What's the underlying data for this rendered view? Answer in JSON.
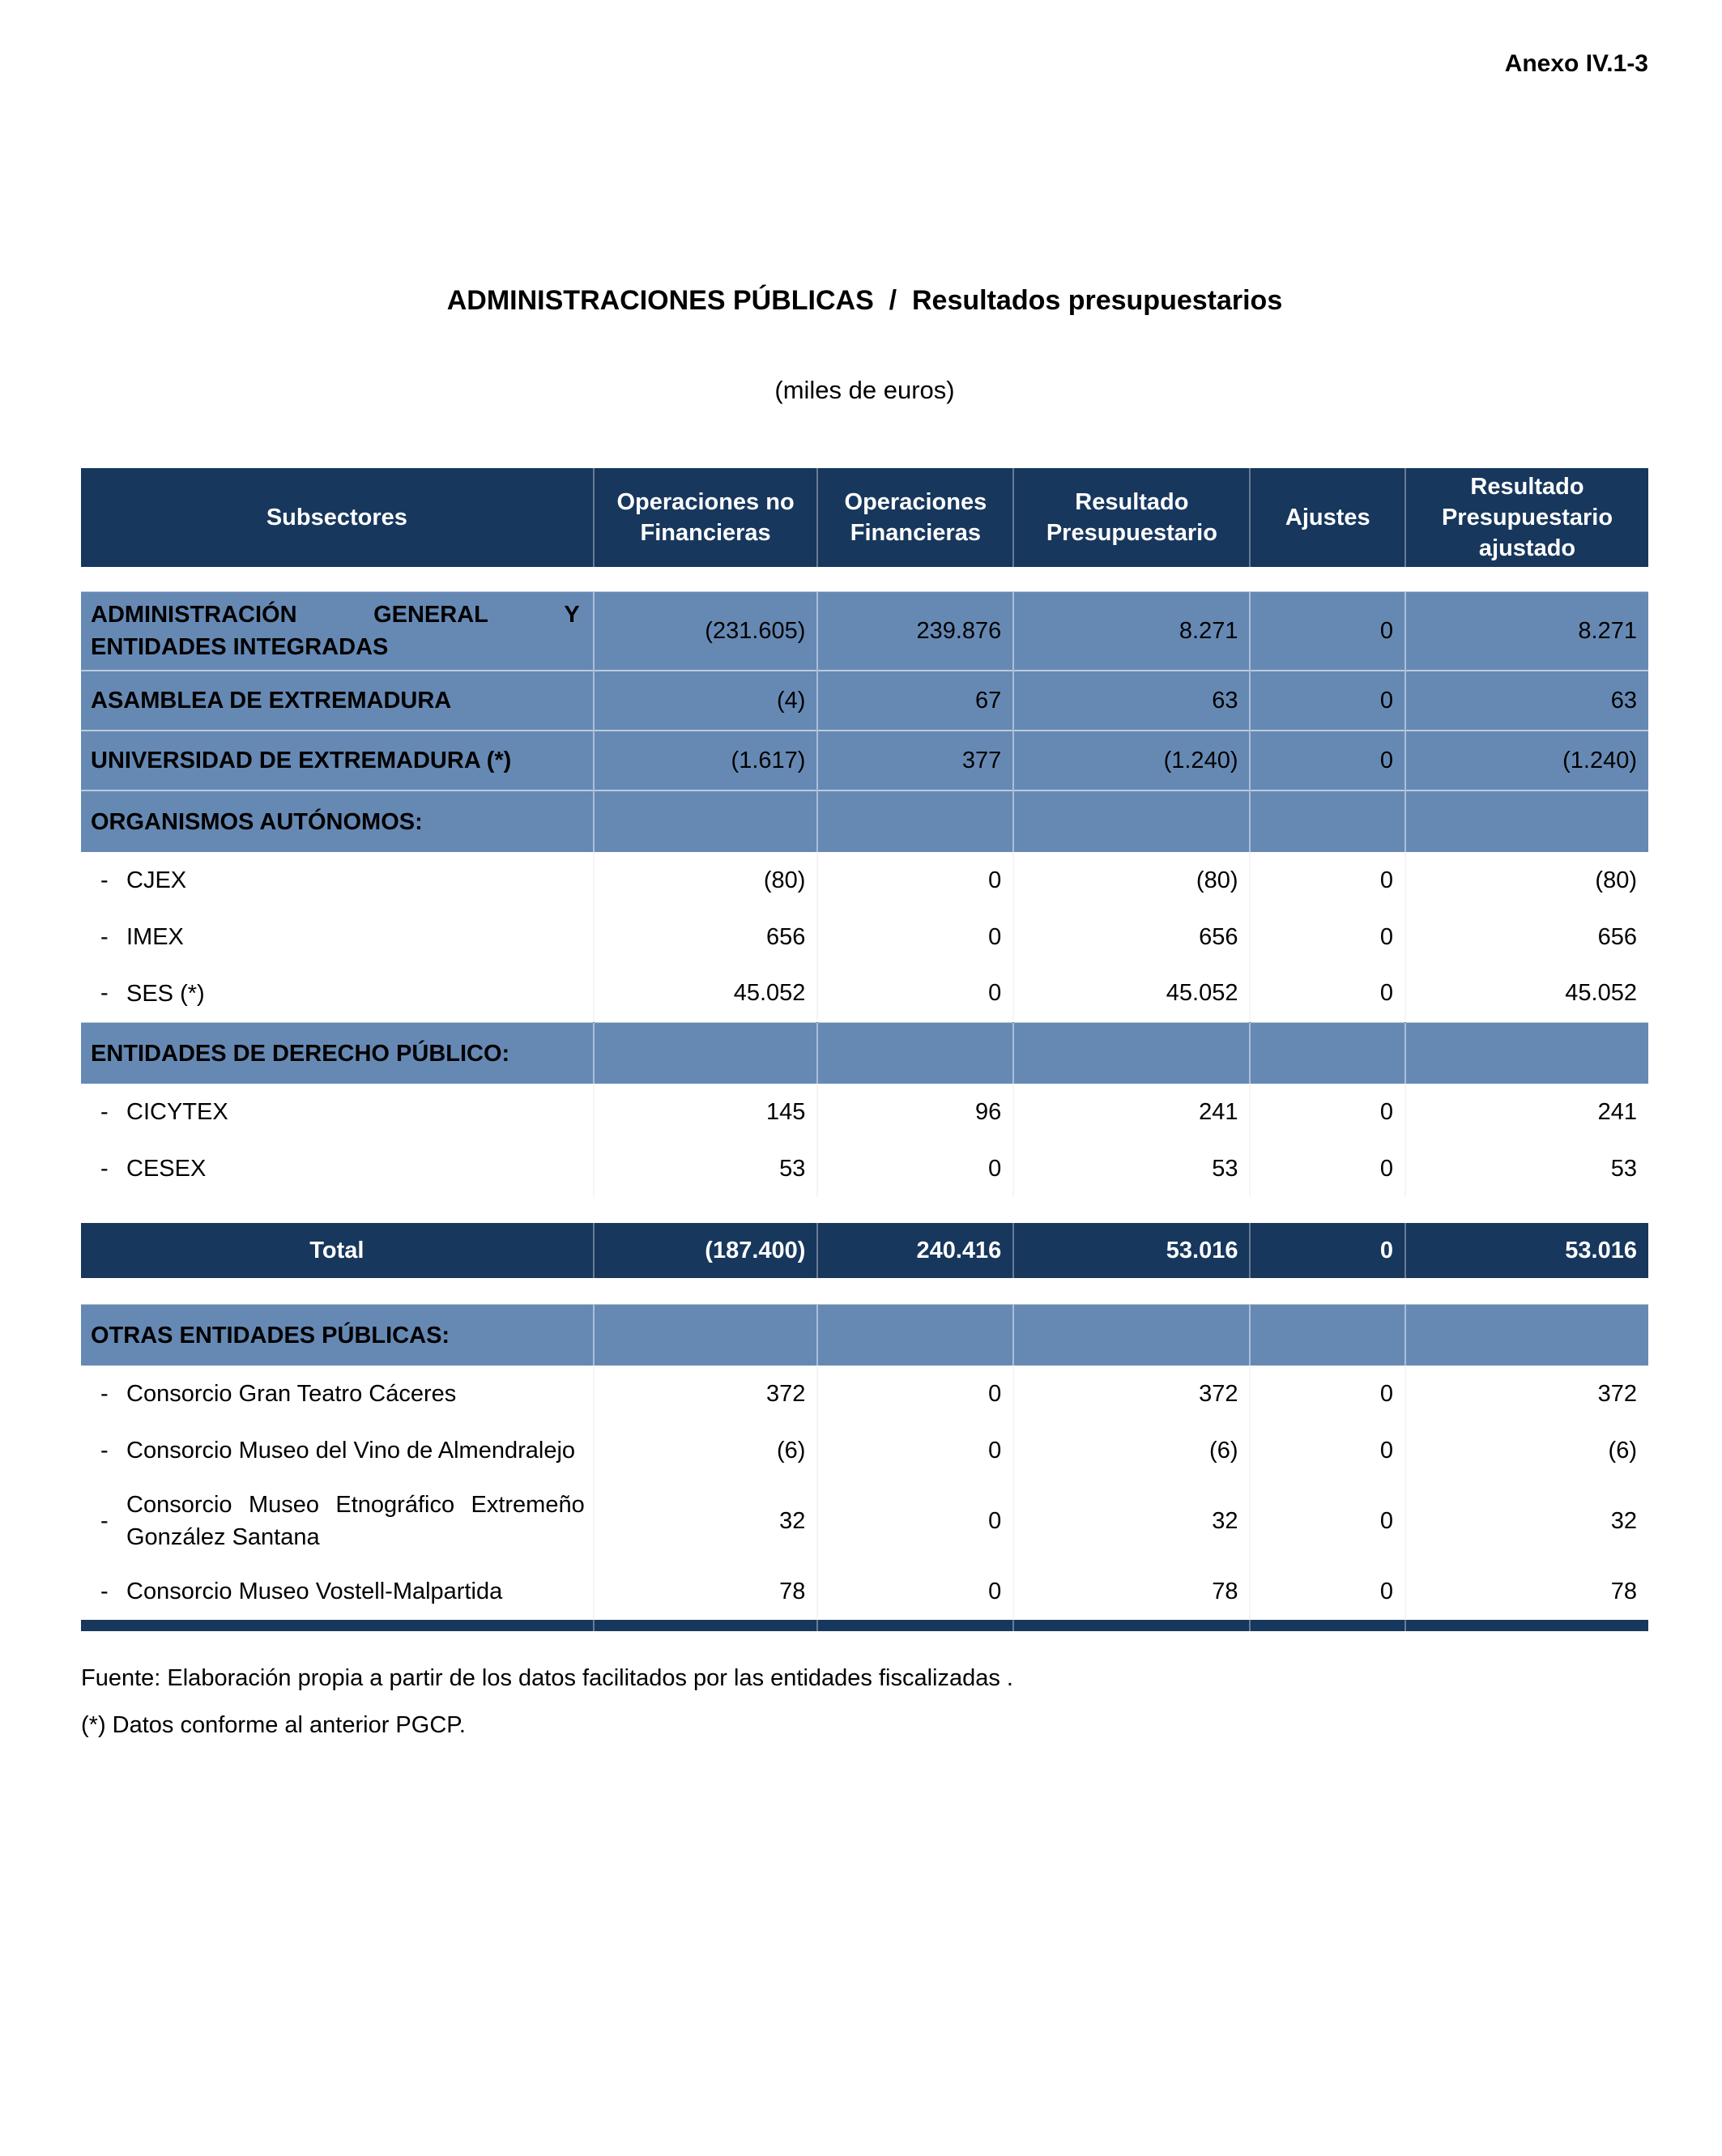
{
  "page": {
    "annex": "Anexo IV.1-3",
    "title": "ADMINISTRACIONES PÚBLICAS  /  Resultados presupuestarios",
    "subtitle": "(miles de euros)",
    "source_note": "Fuente: Elaboración propia a partir de los datos facilitados por las entidades fiscalizadas .",
    "asterisk_note": "(*) Datos conforme al anterior PGCP."
  },
  "colors": {
    "header_bg": "#17375D",
    "band_bg": "#6689B4",
    "header_text": "#FFFFFF",
    "body_text": "#000000"
  },
  "table": {
    "columns": [
      "Subsectores",
      "Operaciones no Financieras",
      "Operaciones Financieras",
      "Resultado Presupuestario",
      "Ajustes",
      "Resultado Presupuestario ajustado"
    ],
    "rows": [
      {
        "type": "entity",
        "label": "ADMINISTRACIÓN GENERAL Y ENTIDADES INTEGRADAS",
        "values": [
          "(231.605)",
          "239.876",
          "8.271",
          "0",
          "8.271"
        ]
      },
      {
        "type": "entity",
        "label": "ASAMBLEA DE EXTREMADURA",
        "values": [
          "(4)",
          "67",
          "63",
          "0",
          "63"
        ]
      },
      {
        "type": "entity",
        "label": "UNIVERSIDAD DE EXTREMADURA (*)",
        "values": [
          "(1.617)",
          "377",
          "(1.240)",
          "0",
          "(1.240)"
        ]
      },
      {
        "type": "section",
        "label": "ORGANISMOS AUTÓNOMOS:",
        "values": [
          "",
          "",
          "",
          "",
          ""
        ]
      },
      {
        "type": "item",
        "label": "CJEX",
        "values": [
          "(80)",
          "0",
          "(80)",
          "0",
          "(80)"
        ]
      },
      {
        "type": "item",
        "label": "IMEX",
        "values": [
          "656",
          "0",
          "656",
          "0",
          "656"
        ]
      },
      {
        "type": "item",
        "label": "SES (*)",
        "values": [
          "45.052",
          "0",
          "45.052",
          "0",
          "45.052"
        ]
      },
      {
        "type": "section",
        "label": "ENTIDADES DE DERECHO PÚBLICO:",
        "values": [
          "",
          "",
          "",
          "",
          ""
        ]
      },
      {
        "type": "item",
        "label": "CICYTEX",
        "values": [
          "145",
          "96",
          "241",
          "0",
          "241"
        ]
      },
      {
        "type": "item",
        "label": "CESEX",
        "values": [
          "53",
          "0",
          "53",
          "0",
          "53"
        ]
      },
      {
        "type": "total",
        "label": "Total",
        "values": [
          "(187.400)",
          "240.416",
          "53.016",
          "0",
          "53.016"
        ],
        "gap_before": true
      },
      {
        "type": "section",
        "label": "OTRAS ENTIDADES PÚBLICAS:",
        "values": [
          "",
          "",
          "",
          "",
          ""
        ],
        "gap_before": true
      },
      {
        "type": "item",
        "label": "Consorcio Gran Teatro Cáceres",
        "values": [
          "372",
          "0",
          "372",
          "0",
          "372"
        ]
      },
      {
        "type": "item",
        "label": "Consorcio Museo del Vino de Almendralejo",
        "values": [
          "(6)",
          "0",
          "(6)",
          "0",
          "(6)"
        ]
      },
      {
        "type": "item",
        "label": "Consorcio Museo Etnográfico Extremeño González Santana",
        "values": [
          "32",
          "0",
          "32",
          "0",
          "32"
        ]
      },
      {
        "type": "item",
        "label": "Consorcio Museo Vostell-Malpartida",
        "values": [
          "78",
          "0",
          "78",
          "0",
          "78"
        ]
      }
    ]
  }
}
